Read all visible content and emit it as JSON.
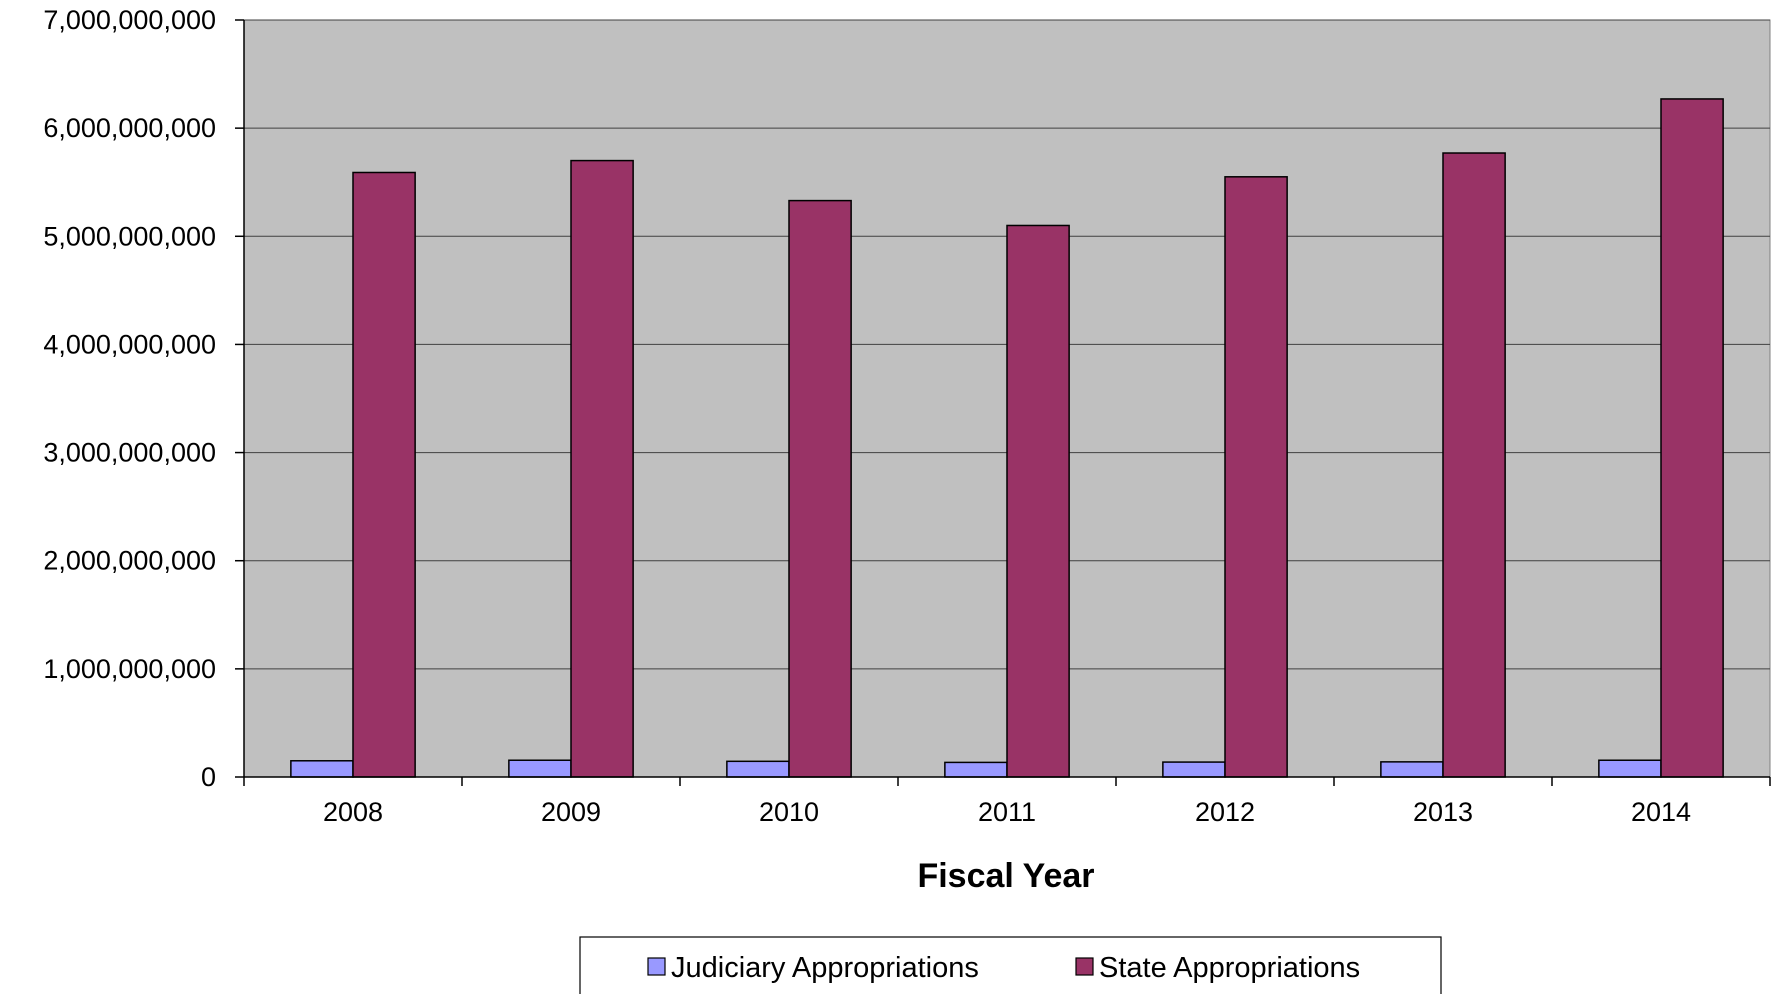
{
  "chart_data": {
    "type": "bar",
    "title": "",
    "xlabel": "Fiscal Year",
    "ylabel": "",
    "categories": [
      "2008",
      "2009",
      "2010",
      "2011",
      "2012",
      "2013",
      "2014"
    ],
    "ylim": [
      0,
      7000000000
    ],
    "yticks": [
      0,
      1000000000,
      2000000000,
      3000000000,
      4000000000,
      5000000000,
      6000000000,
      7000000000
    ],
    "ytick_labels": [
      "0",
      "1,000,000,000",
      "2,000,000,000",
      "3,000,000,000",
      "4,000,000,000",
      "5,000,000,000",
      "6,000,000,000",
      "7,000,000,000"
    ],
    "grid": true,
    "legend_position": "bottom",
    "series": [
      {
        "name": "Judiciary Appropriations",
        "color": "#9999FF",
        "values": [
          150000000,
          155000000,
          145000000,
          135000000,
          138000000,
          140000000,
          155000000
        ]
      },
      {
        "name": "State Appropriations",
        "color": "#993366",
        "values": [
          5590000000,
          5700000000,
          5330000000,
          5100000000,
          5550000000,
          5770000000,
          6270000000
        ]
      }
    ],
    "plot_background": "#C0C0C0"
  }
}
